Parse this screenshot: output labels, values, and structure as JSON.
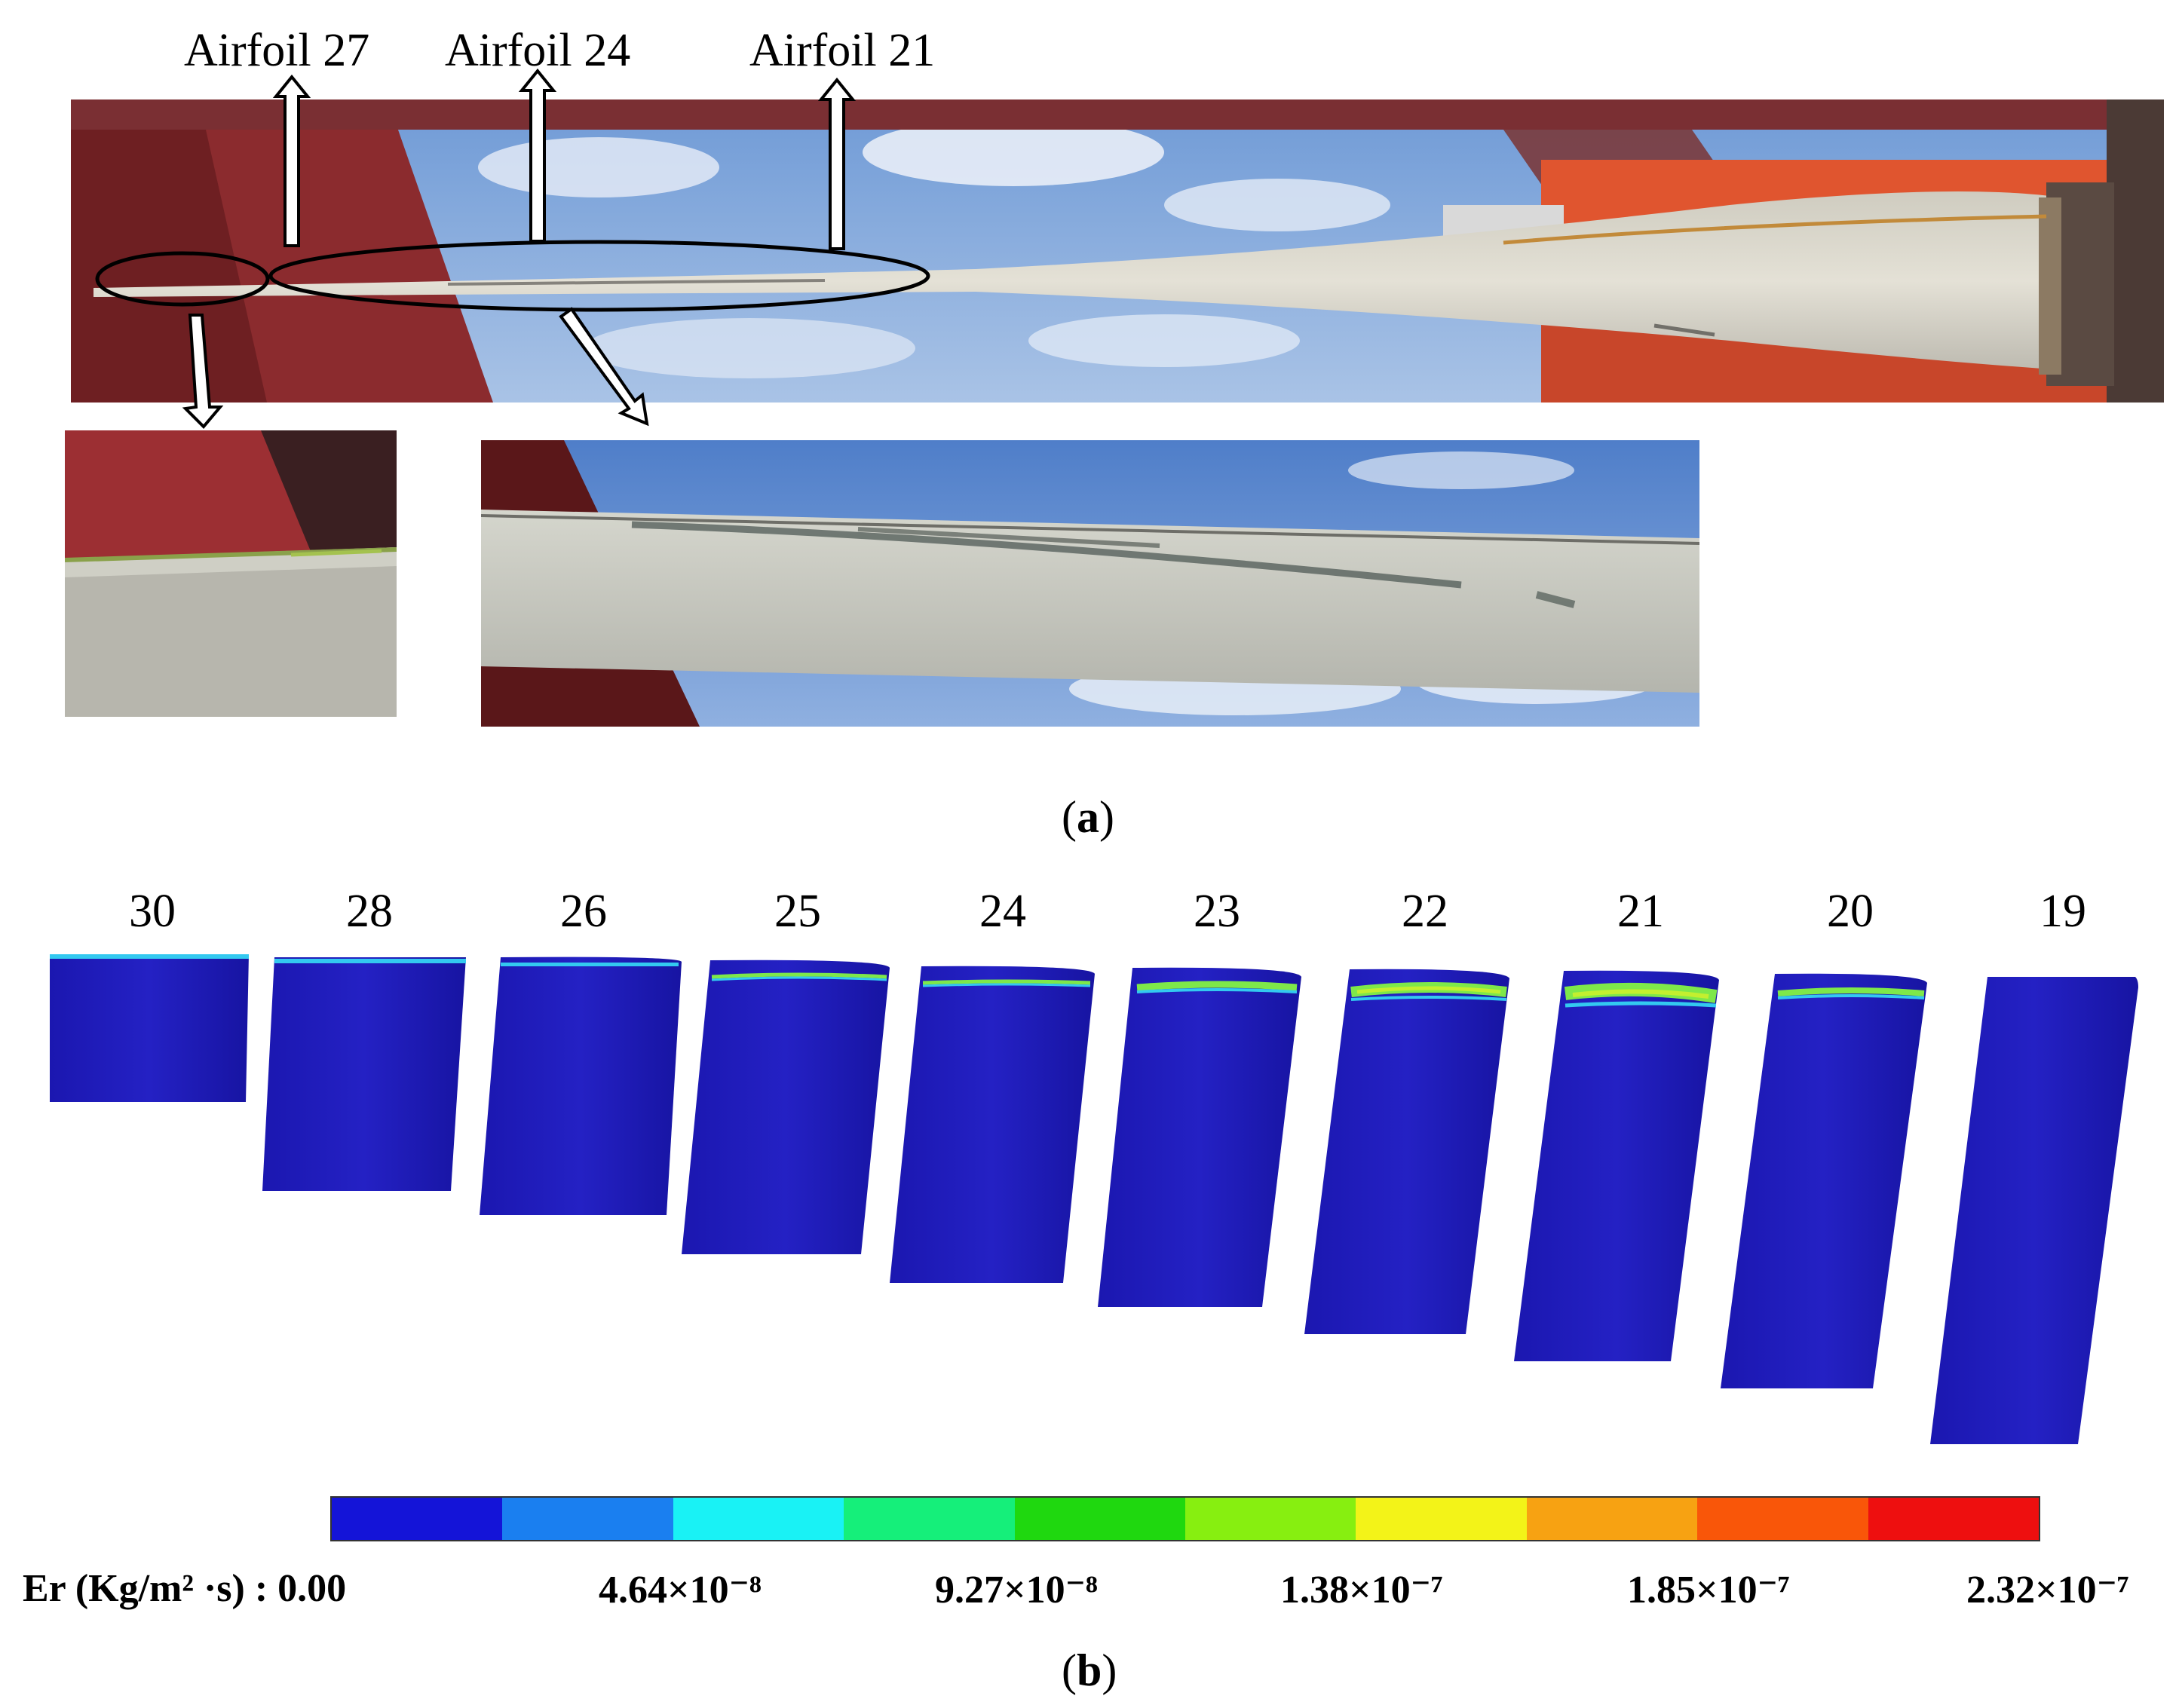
{
  "panel_a": {
    "callouts": [
      "Airfoil 27",
      "Airfoil 24",
      "Airfoil 21"
    ],
    "caption_open": "(",
    "caption_letter": "a",
    "caption_close": ")"
  },
  "panel_b": {
    "section_labels": [
      "30",
      "28",
      "26",
      "25",
      "24",
      "23",
      "22",
      "21",
      "20",
      "19"
    ],
    "colorbar": {
      "title": "Er (Kg/m² ·s) : 0.00",
      "ticks": [
        "4.64×10⁻⁸",
        "9.27×10⁻⁸",
        "1.38×10⁻⁷",
        "1.85×10⁻⁷",
        "2.32×10⁻⁷"
      ],
      "colors": [
        "#1414d8",
        "#1a7ff0",
        "#19f2f5",
        "#15ef7a",
        "#1fd80f",
        "#87ef10",
        "#f3f318",
        "#f7a212",
        "#f95609",
        "#ee0f0f"
      ]
    },
    "caption_open": "(",
    "caption_letter": "b",
    "caption_close": ")"
  },
  "colors": {
    "blade_blue": "#1d1ab5",
    "erosion_green": "#7ee84a",
    "erosion_cyan": "#33c9f0"
  }
}
